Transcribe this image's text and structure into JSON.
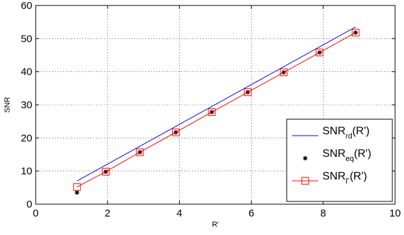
{
  "chart_data": {
    "type": "line",
    "xlabel": "R'",
    "ylabel": "SNR",
    "xlim": [
      0,
      10
    ],
    "ylim": [
      0,
      60
    ],
    "xticks": [
      0,
      2,
      4,
      6,
      8,
      10
    ],
    "yticks": [
      0,
      10,
      20,
      30,
      40,
      50,
      60
    ],
    "grid": true,
    "grid_style": "dotted",
    "legend_position": "bottom-right",
    "series": [
      {
        "name": "SNR_rd(R')",
        "name_base": "SNR",
        "name_sub": "rd",
        "name_tail": "(R')",
        "style": "line",
        "color": "#0000ff",
        "x": [
          1.15,
          8.9
        ],
        "y": [
          7.0,
          53.5
        ]
      },
      {
        "name": "SNR_eq(R')",
        "name_base": "SNR",
        "name_sub": "eq",
        "name_tail": "(R')",
        "style": "marker",
        "marker": "asterisk",
        "color": "#000000",
        "x": [
          1.15,
          1.95,
          2.9,
          3.9,
          4.9,
          5.9,
          6.9,
          7.9,
          8.9
        ],
        "y": [
          3.5,
          9.8,
          15.7,
          21.7,
          27.8,
          33.8,
          39.8,
          45.8,
          51.8
        ]
      },
      {
        "name": "SNR_Γ(R')",
        "name_base": "SNR",
        "name_sub": "Γ",
        "name_tail": "(R')",
        "style": "line+marker",
        "marker": "square",
        "color": "#ff0000",
        "x": [
          1.15,
          1.95,
          2.9,
          3.9,
          4.9,
          5.9,
          6.9,
          7.9,
          8.9
        ],
        "y": [
          5.2,
          9.8,
          15.7,
          21.7,
          27.8,
          33.8,
          39.8,
          45.8,
          51.8
        ]
      }
    ]
  }
}
